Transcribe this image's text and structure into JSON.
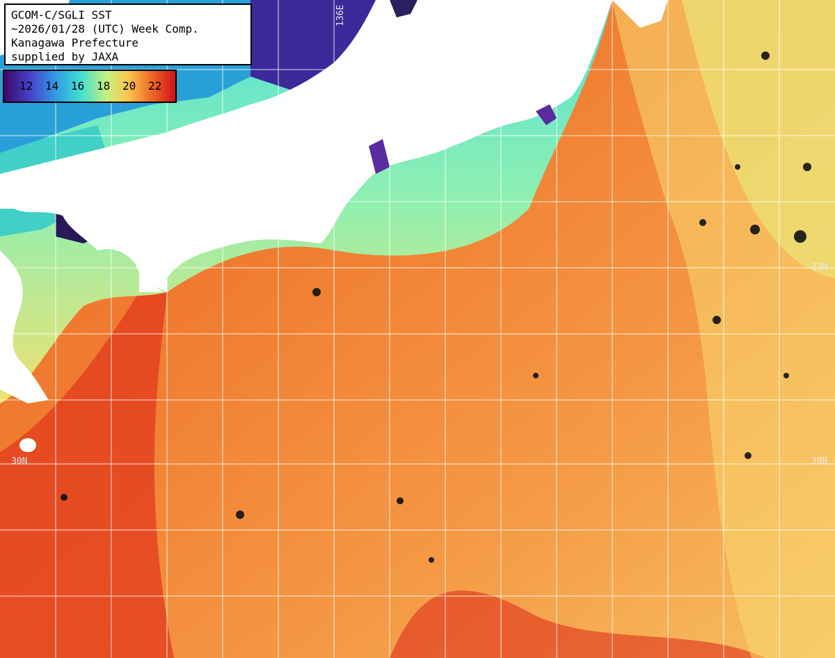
{
  "info": {
    "line1": "GCOM-C/SGLI SST",
    "line2": "~2026/01/28 (UTC) Week Comp.",
    "line3": "Kanagawa Prefecture",
    "line4": "supplied by JAXA"
  },
  "legend": {
    "ticks": [
      "12",
      "14",
      "16",
      "18",
      "20",
      "22"
    ],
    "colors": [
      "#3a0a6a",
      "#2f7be6",
      "#36d8e8",
      "#b8f090",
      "#f8c050",
      "#f06020",
      "#d0101a"
    ]
  },
  "grid": {
    "lon_label": "136E",
    "lat_label_1": "33N",
    "lat_label_2": "30N"
  }
}
